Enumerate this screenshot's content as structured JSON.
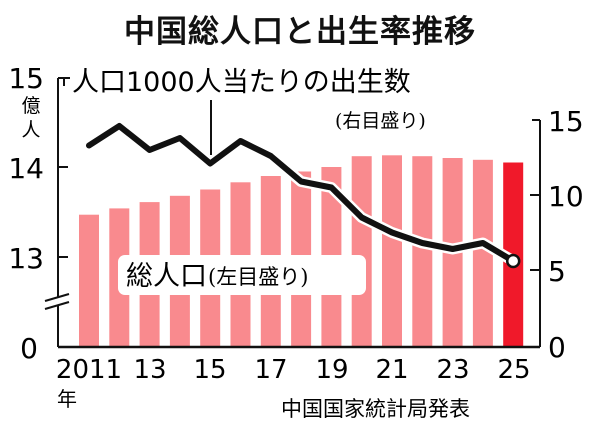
{
  "title": "中国総人口と出生率推移",
  "source": "中国国家統計局発表",
  "left_axis": {
    "unit": "億人",
    "ticks": [
      "15",
      "14",
      "13",
      "0"
    ]
  },
  "right_axis": {
    "ticks": [
      "15",
      "10",
      "5",
      "0"
    ]
  },
  "x_axis": {
    "ticks": [
      "2011",
      "13",
      "15",
      "17",
      "19",
      "21",
      "23",
      "25"
    ],
    "unit": "年"
  },
  "annotations": {
    "line_label": "人口1000人当たりの出生数",
    "line_axis_note": "(右目盛り)",
    "bar_label": "総人口",
    "bar_axis_note": "(左目盛り)"
  },
  "colors": {
    "bar": "#f98a8e",
    "bar_highlight": "#f0192a",
    "line": "#111111"
  },
  "chart_data": {
    "type": "bar+line",
    "title": "中国総人口と出生率推移",
    "categories": [
      "2011",
      "2012",
      "2013",
      "2014",
      "2015",
      "2016",
      "2017",
      "2018",
      "2019",
      "2020",
      "2021",
      "2022",
      "2023",
      "2024",
      "2025"
    ],
    "series": [
      {
        "name": "総人口",
        "axis": "left",
        "unit": "億人",
        "type": "bar",
        "values": [
          13.47,
          13.54,
          13.61,
          13.68,
          13.75,
          13.83,
          13.9,
          13.95,
          14.0,
          14.12,
          14.13,
          14.12,
          14.1,
          14.08,
          14.05
        ]
      },
      {
        "name": "人口1000人当たりの出生数",
        "axis": "right",
        "type": "line",
        "values": [
          13.3,
          14.6,
          13.0,
          13.8,
          12.1,
          13.6,
          12.6,
          10.9,
          10.5,
          8.5,
          7.5,
          6.8,
          6.4,
          6.8,
          5.6
        ]
      }
    ],
    "left_ylim": [
      0,
      15
    ],
    "left_axis_break": true,
    "right_ylim": [
      0,
      15
    ],
    "xlabel": "年",
    "ylabel_left": "億人",
    "source": "中国国家統計局発表",
    "highlight": "2025"
  }
}
